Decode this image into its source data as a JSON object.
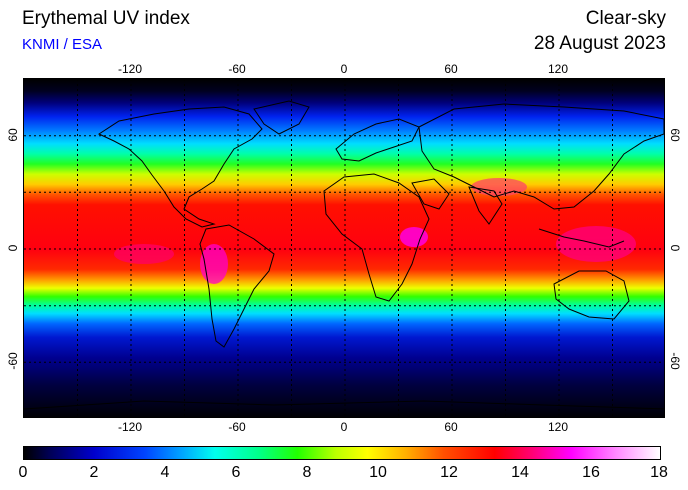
{
  "header": {
    "title": "Erythemal UV index",
    "source": "KNMI / ESA",
    "kind": "Clear-sky",
    "date": "28 August 2023"
  },
  "map": {
    "projection": "equirectangular",
    "lon_range": [
      -180,
      180
    ],
    "lat_range": [
      -90,
      90
    ],
    "grid_lon": [
      -150,
      -120,
      -90,
      -60,
      -30,
      0,
      30,
      60,
      90,
      120,
      150
    ],
    "grid_lat": [
      -60,
      -30,
      0,
      30,
      60
    ],
    "lon_labels": [
      "-120",
      "-60",
      "0",
      "60",
      "120"
    ],
    "lat_labels": [
      "60",
      "0",
      "-60"
    ]
  },
  "colorbar": {
    "min": 0,
    "max": 18,
    "labels": [
      "0",
      "2",
      "4",
      "6",
      "8",
      "10",
      "12",
      "14",
      "16",
      "18"
    ],
    "colors": [
      "#000000",
      "#0000cc",
      "#00a8ff",
      "#00ff88",
      "#ffff00",
      "#ff0000",
      "#ff00ff",
      "#ffffff"
    ]
  }
}
